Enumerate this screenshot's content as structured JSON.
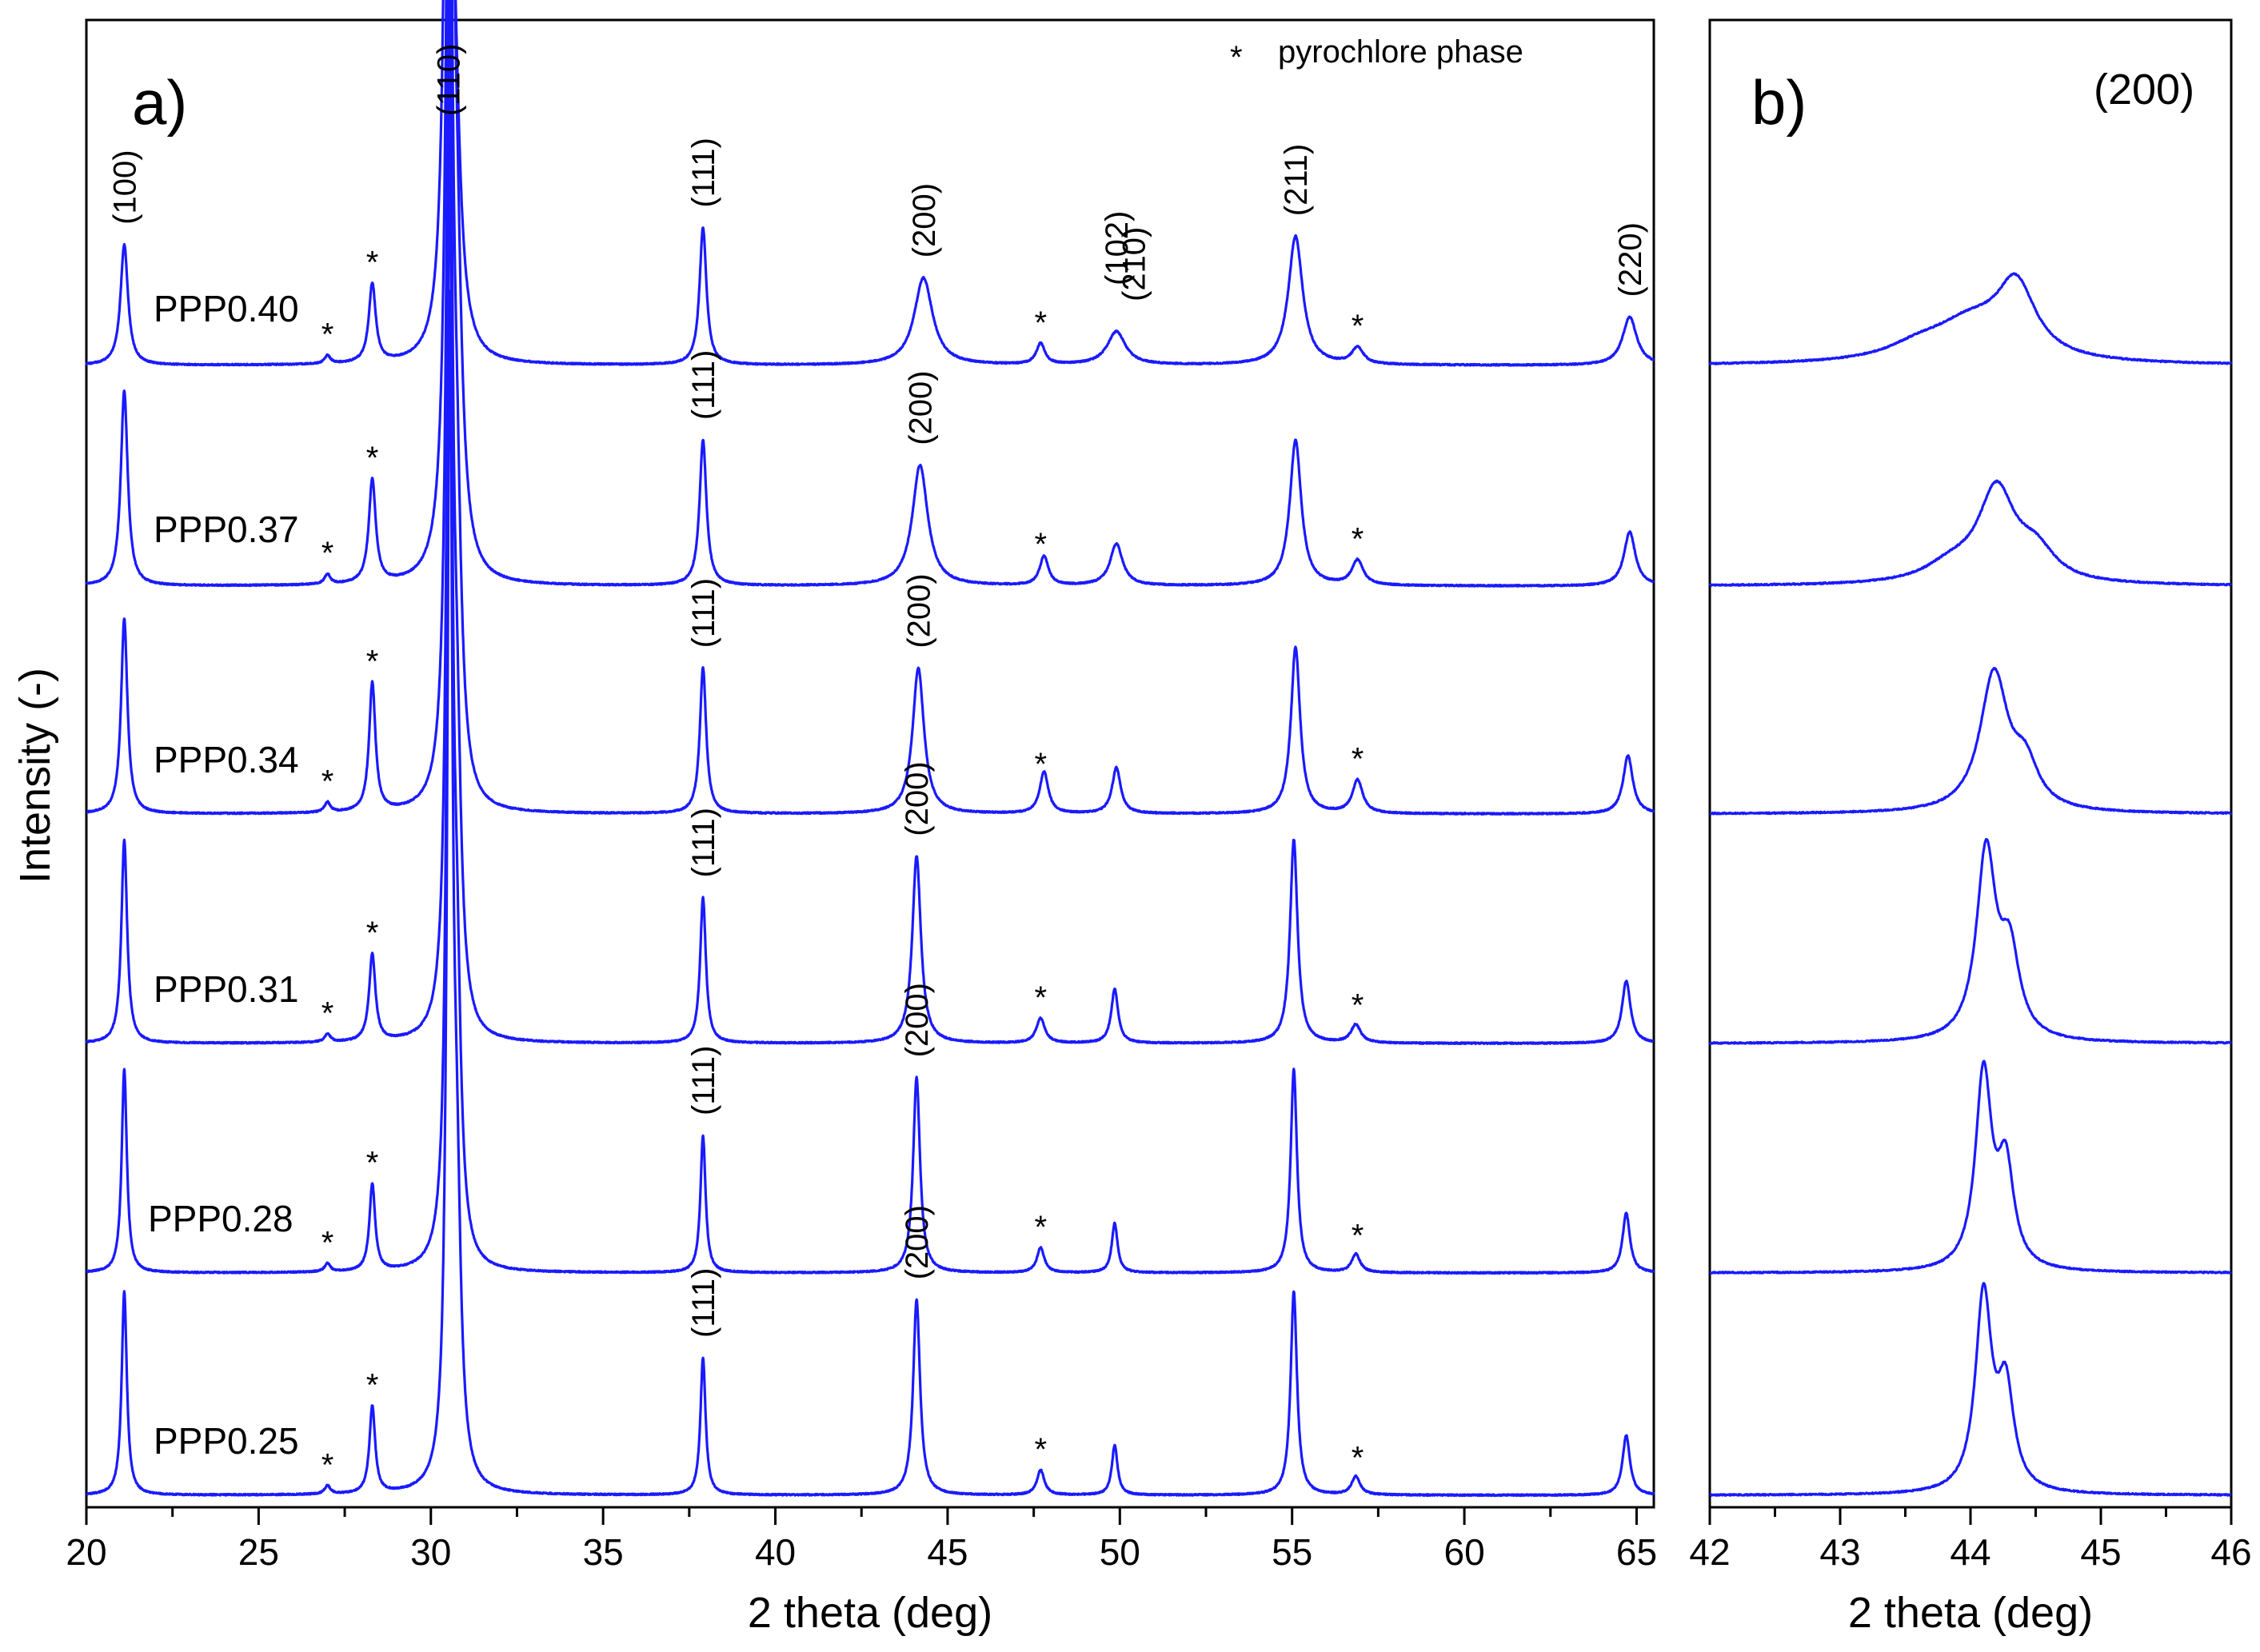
{
  "colors": {
    "trace": "#1a1aff",
    "axis": "#000000",
    "background": "#ffffff"
  },
  "chart_data": [
    {
      "type": "line",
      "panel": "a)",
      "xlabel": "2 theta (deg)",
      "ylabel": "Intensity (-)",
      "xlim": [
        20,
        65.5
      ],
      "xticks": [
        20,
        25,
        30,
        35,
        40,
        45,
        50,
        55,
        60,
        65
      ],
      "xtick_labels": [
        "20",
        "25",
        "30",
        "35",
        "40",
        "45",
        "50",
        "55",
        "60",
        "65"
      ],
      "legend": {
        "symbol": "*",
        "label": "pyrochlore phase",
        "placement": "top-right"
      },
      "series": [
        {
          "name": "PPP0.40",
          "baseline": 0,
          "peaks": [
            {
              "x": 21.1,
              "h": 0.145,
              "w": 0.13
            },
            {
              "x": 27.0,
              "h": 0.01,
              "w": 0.1
            },
            {
              "x": 28.3,
              "h": 0.095,
              "w": 0.12
            },
            {
              "x": 30.5,
              "h": 0.85,
              "w": 0.13
            },
            {
              "x": 30.7,
              "h": 0.22,
              "w": 0.2
            },
            {
              "x": 37.9,
              "h": 0.165,
              "w": 0.12
            },
            {
              "x": 44.3,
              "h": 0.105,
              "w": 0.32
            },
            {
              "x": 47.7,
              "h": 0.025,
              "w": 0.15
            },
            {
              "x": 49.9,
              "h": 0.04,
              "w": 0.32
            },
            {
              "x": 55.1,
              "h": 0.155,
              "w": 0.25
            },
            {
              "x": 56.9,
              "h": 0.02,
              "w": 0.2
            },
            {
              "x": 64.8,
              "h": 0.058,
              "w": 0.25
            }
          ]
        },
        {
          "name": "PPP0.37",
          "baseline": 1,
          "peaks": [
            {
              "x": 21.1,
              "h": 0.235,
              "w": 0.12
            },
            {
              "x": 27.0,
              "h": 0.012,
              "w": 0.1
            },
            {
              "x": 28.3,
              "h": 0.125,
              "w": 0.12
            },
            {
              "x": 30.55,
              "h": 1.1,
              "w": 0.12
            },
            {
              "x": 30.75,
              "h": 0.3,
              "w": 0.18
            },
            {
              "x": 37.9,
              "h": 0.175,
              "w": 0.12
            },
            {
              "x": 44.2,
              "h": 0.145,
              "w": 0.27
            },
            {
              "x": 47.8,
              "h": 0.035,
              "w": 0.15
            },
            {
              "x": 49.9,
              "h": 0.05,
              "w": 0.22
            },
            {
              "x": 55.1,
              "h": 0.175,
              "w": 0.2
            },
            {
              "x": 56.9,
              "h": 0.03,
              "w": 0.2
            },
            {
              "x": 64.8,
              "h": 0.065,
              "w": 0.2
            }
          ]
        },
        {
          "name": "PPP0.34",
          "baseline": 2,
          "peaks": [
            {
              "x": 21.1,
              "h": 0.235,
              "w": 0.11
            },
            {
              "x": 27.0,
              "h": 0.012,
              "w": 0.1
            },
            {
              "x": 28.3,
              "h": 0.155,
              "w": 0.11
            },
            {
              "x": 30.55,
              "h": 1.1,
              "w": 0.11
            },
            {
              "x": 30.75,
              "h": 0.3,
              "w": 0.16
            },
            {
              "x": 37.9,
              "h": 0.175,
              "w": 0.11
            },
            {
              "x": 44.15,
              "h": 0.175,
              "w": 0.2
            },
            {
              "x": 47.8,
              "h": 0.05,
              "w": 0.15
            },
            {
              "x": 49.9,
              "h": 0.055,
              "w": 0.15
            },
            {
              "x": 55.1,
              "h": 0.2,
              "w": 0.16
            },
            {
              "x": 56.9,
              "h": 0.04,
              "w": 0.18
            },
            {
              "x": 64.75,
              "h": 0.07,
              "w": 0.17
            }
          ]
        },
        {
          "name": "PPP0.31",
          "baseline": 3,
          "peaks": [
            {
              "x": 21.1,
              "h": 0.245,
              "w": 0.1
            },
            {
              "x": 27.0,
              "h": 0.01,
              "w": 0.1
            },
            {
              "x": 28.3,
              "h": 0.105,
              "w": 0.11
            },
            {
              "x": 30.55,
              "h": 1.15,
              "w": 0.1
            },
            {
              "x": 30.75,
              "h": 0.3,
              "w": 0.15
            },
            {
              "x": 37.9,
              "h": 0.175,
              "w": 0.1
            },
            {
              "x": 44.1,
              "h": 0.225,
              "w": 0.15
            },
            {
              "x": 47.7,
              "h": 0.03,
              "w": 0.15
            },
            {
              "x": 49.85,
              "h": 0.065,
              "w": 0.12
            },
            {
              "x": 55.05,
              "h": 0.245,
              "w": 0.13
            },
            {
              "x": 56.85,
              "h": 0.022,
              "w": 0.17
            },
            {
              "x": 64.7,
              "h": 0.075,
              "w": 0.15
            }
          ]
        },
        {
          "name": "PPP0.28",
          "baseline": 4,
          "peaks": [
            {
              "x": 21.1,
              "h": 0.245,
              "w": 0.09
            },
            {
              "x": 27.0,
              "h": 0.01,
              "w": 0.1
            },
            {
              "x": 28.3,
              "h": 0.105,
              "w": 0.1
            },
            {
              "x": 30.55,
              "h": 1.3,
              "w": 0.09
            },
            {
              "x": 30.75,
              "h": 0.3,
              "w": 0.14
            },
            {
              "x": 37.9,
              "h": 0.165,
              "w": 0.09
            },
            {
              "x": 44.1,
              "h": 0.235,
              "w": 0.12
            },
            {
              "x": 47.7,
              "h": 0.03,
              "w": 0.13
            },
            {
              "x": 49.85,
              "h": 0.06,
              "w": 0.1
            },
            {
              "x": 55.05,
              "h": 0.245,
              "w": 0.11
            },
            {
              "x": 56.85,
              "h": 0.022,
              "w": 0.15
            },
            {
              "x": 64.7,
              "h": 0.072,
              "w": 0.13
            }
          ]
        },
        {
          "name": "PPP0.25",
          "baseline": 5,
          "peaks": [
            {
              "x": 21.1,
              "h": 0.245,
              "w": 0.09
            },
            {
              "x": 27.0,
              "h": 0.01,
              "w": 0.1
            },
            {
              "x": 28.3,
              "h": 0.105,
              "w": 0.1
            },
            {
              "x": 30.55,
              "h": 1.35,
              "w": 0.09
            },
            {
              "x": 30.75,
              "h": 0.3,
              "w": 0.14
            },
            {
              "x": 37.9,
              "h": 0.165,
              "w": 0.09
            },
            {
              "x": 44.1,
              "h": 0.235,
              "w": 0.12
            },
            {
              "x": 47.7,
              "h": 0.03,
              "w": 0.13
            },
            {
              "x": 49.85,
              "h": 0.06,
              "w": 0.1
            },
            {
              "x": 55.05,
              "h": 0.245,
              "w": 0.11
            },
            {
              "x": 56.85,
              "h": 0.022,
              "w": 0.15
            },
            {
              "x": 64.7,
              "h": 0.072,
              "w": 0.13
            }
          ]
        }
      ],
      "peak_labels": [
        {
          "series": "PPP0.40",
          "hkl": "(100)",
          "x": 21.1
        },
        {
          "series": "PPP0.40",
          "hkl": "(110)",
          "x": 30.5
        },
        {
          "series": "PPP0.40",
          "hkl": "(111)",
          "x": 37.9
        },
        {
          "series": "PPP0.40",
          "hkl": "(200)",
          "x": 44.3
        },
        {
          "series": "PPP0.40",
          "hkl": "(102)",
          "x": 49.9
        },
        {
          "series": "PPP0.40",
          "hkl": "(210)",
          "x": 50.4
        },
        {
          "series": "PPP0.40",
          "hkl": "(211)",
          "x": 55.1
        },
        {
          "series": "PPP0.40",
          "hkl": "(220)",
          "x": 64.8
        },
        {
          "series": "PPP0.37",
          "hkl": "(111)",
          "x": 37.9
        },
        {
          "series": "PPP0.37",
          "hkl": "(200)",
          "x": 44.2
        },
        {
          "series": "PPP0.34",
          "hkl": "(111)",
          "x": 37.9
        },
        {
          "series": "PPP0.34",
          "hkl": "(200)",
          "x": 44.15
        },
        {
          "series": "PPP0.31",
          "hkl": "(111)",
          "x": 37.9
        },
        {
          "series": "PPP0.31",
          "hkl": "(200)",
          "x": 44.1
        },
        {
          "series": "PPP0.28",
          "hkl": "(111)",
          "x": 37.9
        },
        {
          "series": "PPP0.28",
          "hkl": "(200)",
          "x": 44.1
        },
        {
          "series": "PPP0.25",
          "hkl": "(111)",
          "x": 37.9
        },
        {
          "series": "PPP0.25",
          "hkl": "(200)",
          "x": 44.1
        }
      ],
      "pyrochlore_markers": [
        27.0,
        28.3,
        47.7,
        56.9
      ]
    },
    {
      "type": "line",
      "panel": "b)",
      "title": "(200)",
      "xlabel": "2 theta (deg)",
      "xlim": [
        42,
        46
      ],
      "xticks": [
        42,
        43,
        44,
        45,
        46
      ],
      "xtick_labels": [
        "42",
        "43",
        "44",
        "45",
        "46"
      ],
      "series": [
        {
          "name": "PPP0.40",
          "baseline": 0,
          "peaks": [
            {
              "x": 44.35,
              "h": 0.085,
              "w": 0.18
            },
            {
              "x": 44.0,
              "h": 0.045,
              "w": 0.35
            },
            {
              "x": 43.6,
              "h": 0.015,
              "w": 0.3
            }
          ]
        },
        {
          "name": "PPP0.37",
          "baseline": 1,
          "peaks": [
            {
              "x": 44.2,
              "h": 0.11,
              "w": 0.17
            },
            {
              "x": 44.5,
              "h": 0.035,
              "w": 0.18
            },
            {
              "x": 43.85,
              "h": 0.02,
              "w": 0.25
            }
          ]
        },
        {
          "name": "PPP0.34",
          "baseline": 2,
          "peaks": [
            {
              "x": 44.18,
              "h": 0.165,
              "w": 0.13
            },
            {
              "x": 44.42,
              "h": 0.05,
              "w": 0.12
            }
          ]
        },
        {
          "name": "PPP0.31",
          "baseline": 3,
          "peaks": [
            {
              "x": 44.12,
              "h": 0.225,
              "w": 0.09
            },
            {
              "x": 44.3,
              "h": 0.1,
              "w": 0.09
            }
          ]
        },
        {
          "name": "PPP0.28",
          "baseline": 4,
          "peaks": [
            {
              "x": 44.1,
              "h": 0.235,
              "w": 0.075
            },
            {
              "x": 44.27,
              "h": 0.12,
              "w": 0.075
            }
          ]
        },
        {
          "name": "PPP0.25",
          "baseline": 5,
          "peaks": [
            {
              "x": 44.1,
              "h": 0.235,
              "w": 0.075
            },
            {
              "x": 44.27,
              "h": 0.12,
              "w": 0.075
            }
          ]
        }
      ]
    }
  ]
}
